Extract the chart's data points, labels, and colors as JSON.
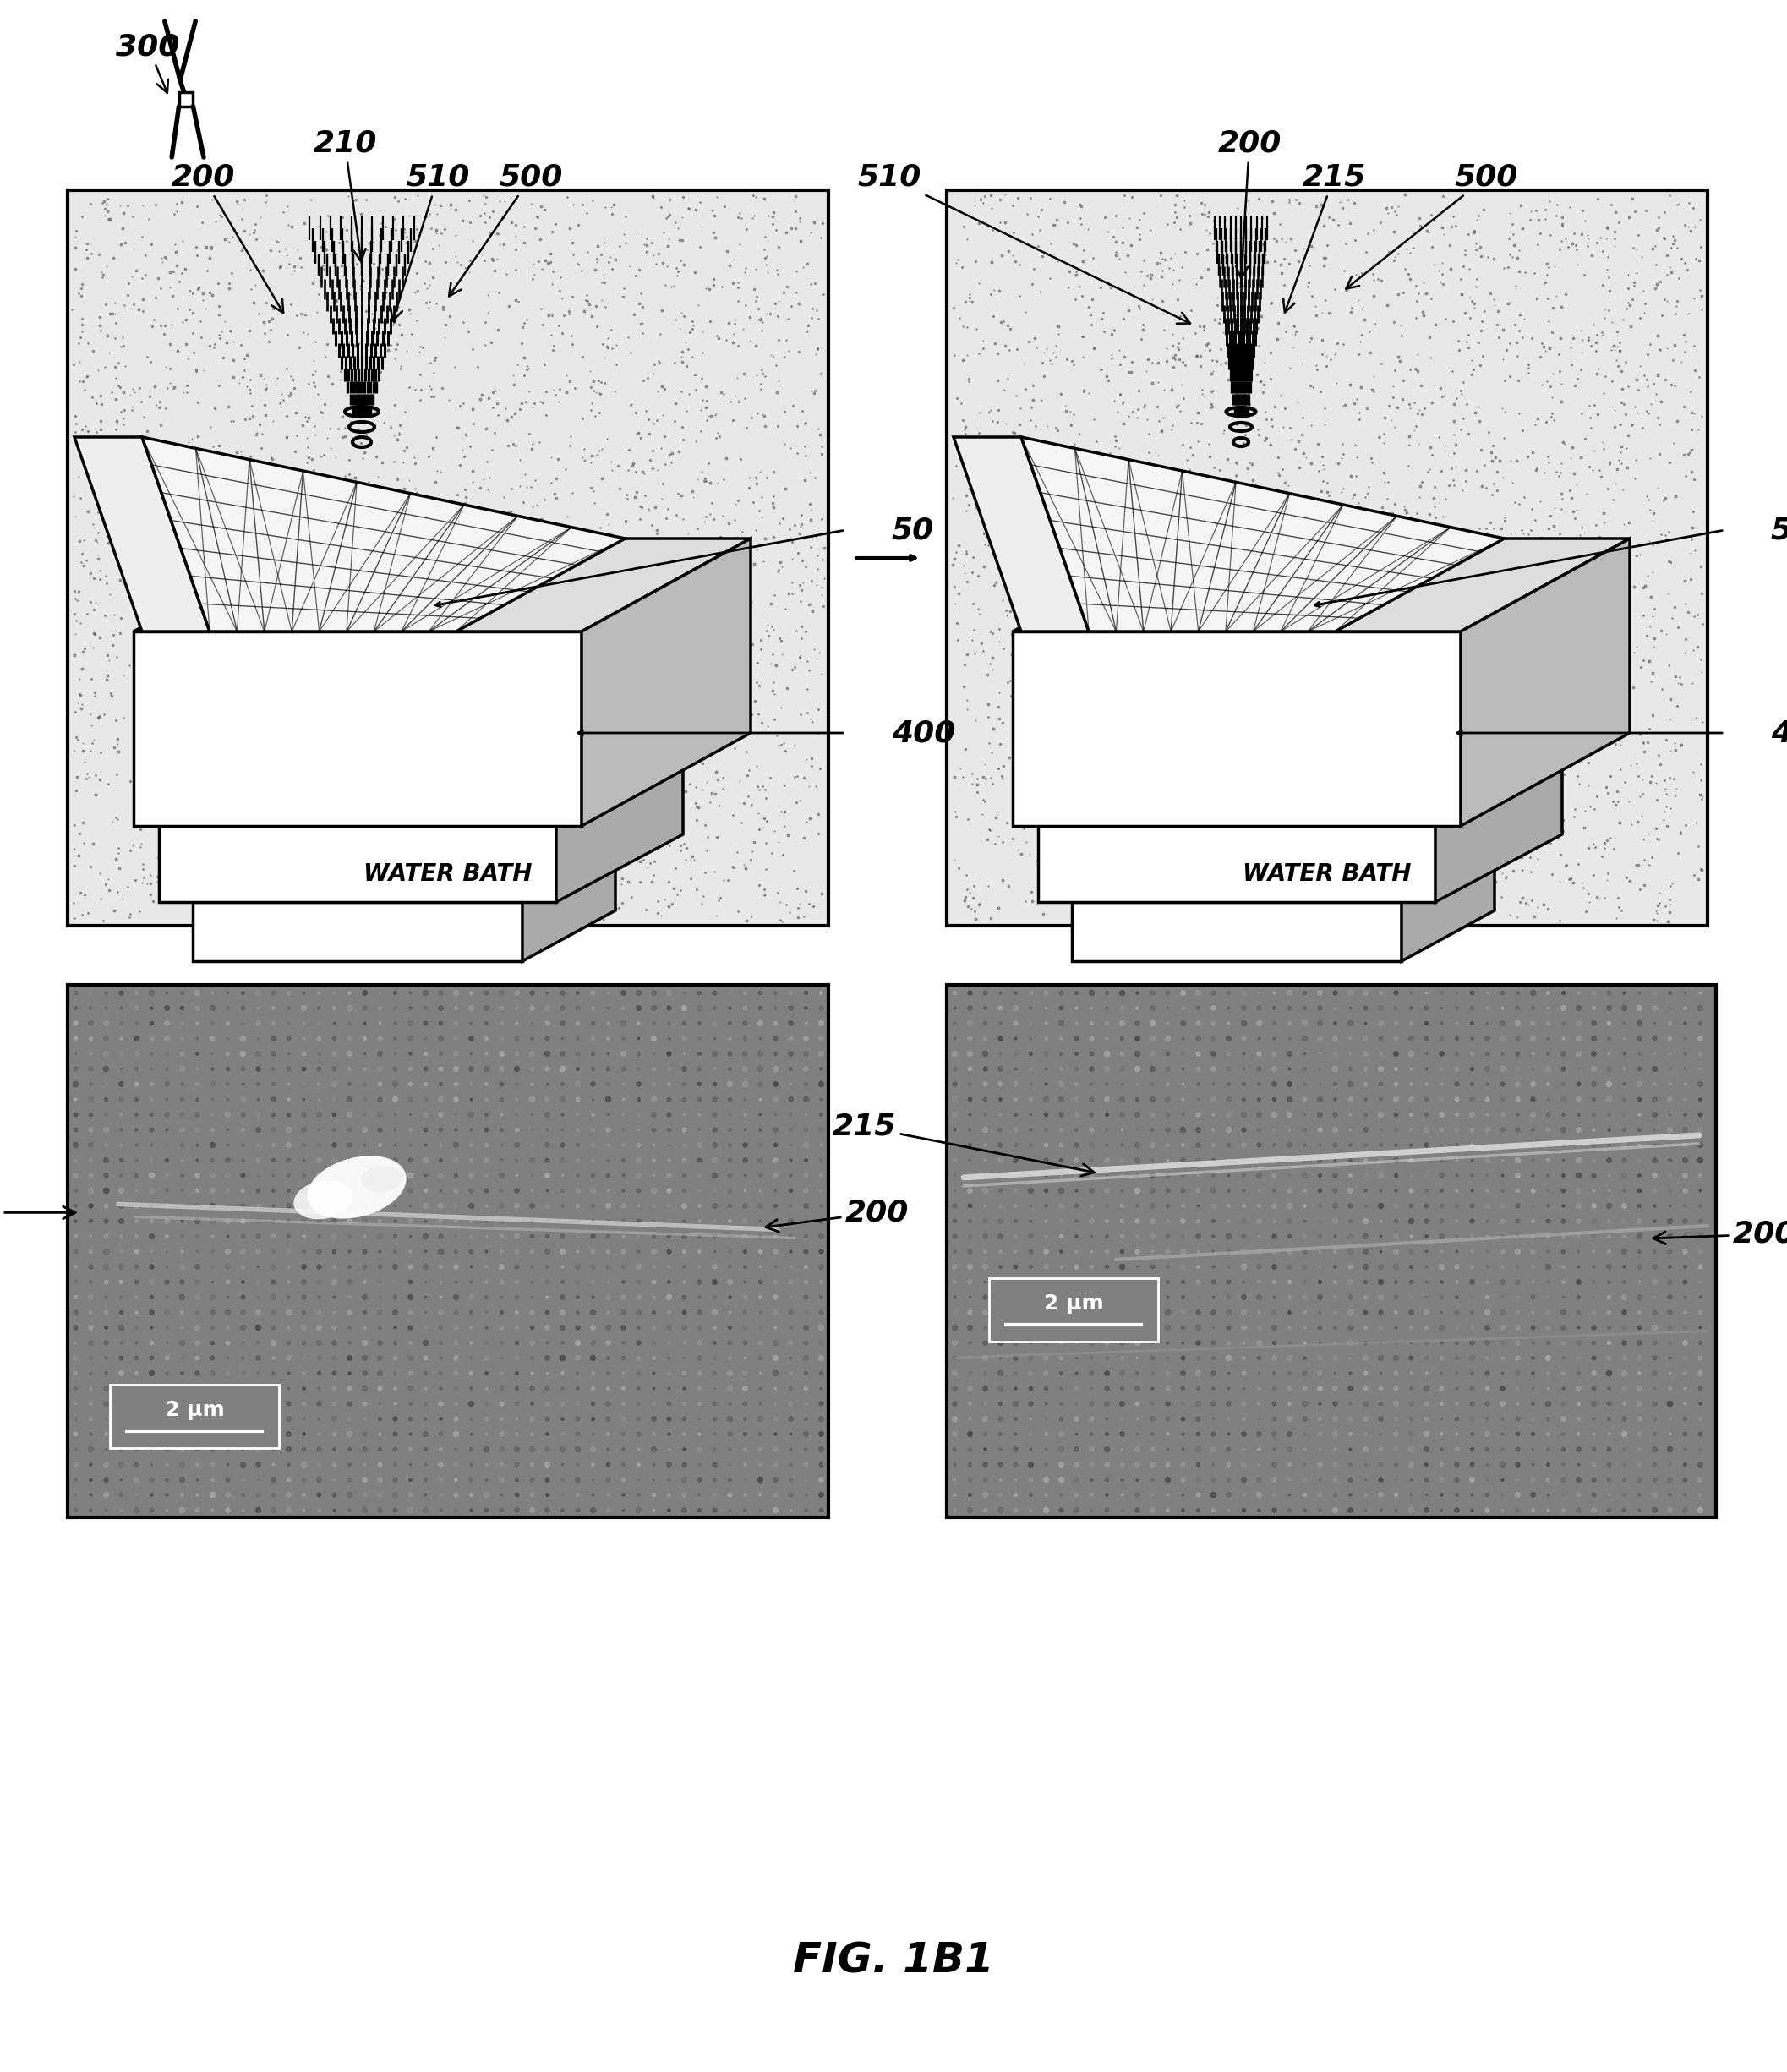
{
  "title": "FIG. 1B1",
  "title_fontsize": 36,
  "bg_color": "#ffffff",
  "label_fontsize": 26,
  "scale_bar_text": "2 μm",
  "water_bath_text": "WATER BATH",
  "panel_dot_color": "#000000",
  "panel_bg_color": "#e0e0e0",
  "mic_bg_color": "#808080"
}
